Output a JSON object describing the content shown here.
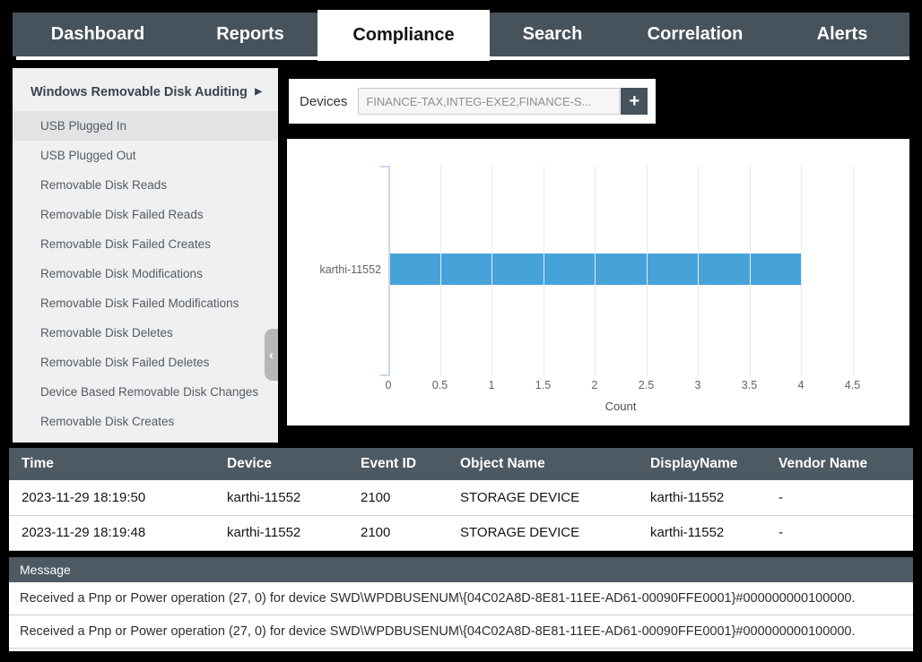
{
  "nav": {
    "tabs": [
      {
        "label": "Dashboard",
        "active": false
      },
      {
        "label": "Reports",
        "active": false
      },
      {
        "label": "Compliance",
        "active": true
      },
      {
        "label": "Search",
        "active": false
      },
      {
        "label": "Correlation",
        "active": false
      },
      {
        "label": "Alerts",
        "active": false
      }
    ]
  },
  "sidebar": {
    "header": {
      "label": "Windows Removable Disk Auditing"
    },
    "items": [
      {
        "label": "USB Plugged In",
        "selected": true
      },
      {
        "label": "USB Plugged Out",
        "selected": false
      },
      {
        "label": "Removable Disk Reads",
        "selected": false
      },
      {
        "label": "Removable Disk Failed Reads",
        "selected": false
      },
      {
        "label": "Removable Disk Failed Creates",
        "selected": false
      },
      {
        "label": "Removable Disk Modifications",
        "selected": false
      },
      {
        "label": "Removable Disk Failed Modifications",
        "selected": false
      },
      {
        "label": "Removable Disk Deletes",
        "selected": false
      },
      {
        "label": "Removable Disk Failed Deletes",
        "selected": false
      },
      {
        "label": "Device Based Removable Disk Changes",
        "selected": false
      },
      {
        "label": "Removable Disk Creates",
        "selected": false
      }
    ]
  },
  "icons": {
    "submenu_arrow": "▶",
    "collapse_chevron": "‹",
    "add": "+"
  },
  "devices": {
    "label": "Devices",
    "value": "FINANCE-TAX,INTEG-EXE2,FINANCE-S..."
  },
  "chart_data": {
    "type": "bar",
    "orientation": "horizontal",
    "categories": [
      "karthi-11552"
    ],
    "values": [
      4
    ],
    "title": "",
    "xlabel": "Count",
    "ylabel": "",
    "xlim": [
      0,
      4.5
    ],
    "xticks": [
      "0",
      "0.5",
      "1",
      "1.5",
      "2",
      "2.5",
      "3",
      "3.5",
      "4",
      "4.5"
    ],
    "grid": true,
    "legend": false,
    "bar_color": "#45a3da"
  },
  "table": {
    "columns": [
      "Time",
      "Device",
      "Event ID",
      "Object Name",
      "DisplayName",
      "Vendor Name"
    ],
    "rows": [
      [
        "2023-11-29 18:19:50",
        "karthi-11552",
        "2100",
        "STORAGE DEVICE",
        "karthi-11552",
        "-"
      ],
      [
        "2023-11-29 18:19:48",
        "karthi-11552",
        "2100",
        "STORAGE DEVICE",
        "karthi-11552",
        "-"
      ]
    ]
  },
  "message_panel": {
    "header": "Message",
    "rows": [
      "Received a Pnp or Power operation (27, 0) for device SWD\\WPDBUSENUM\\{04C02A8D-8E81-11EE-AD61-00090FFE0001}#000000000100000.",
      "Received a Pnp or Power operation (27, 0) for device SWD\\WPDBUSENUM\\{04C02A8D-8E81-11EE-AD61-00090FFE0001}#000000000100000."
    ]
  },
  "colors": {
    "nav_background": "#46525c",
    "active_tab_background": "#ffffff",
    "sidebar_background": "#eef0f1",
    "selected_item_background": "#e1e3e5",
    "bar_color": "#45a3da",
    "table_header_background": "#4d5963",
    "page_background": "#000000"
  }
}
